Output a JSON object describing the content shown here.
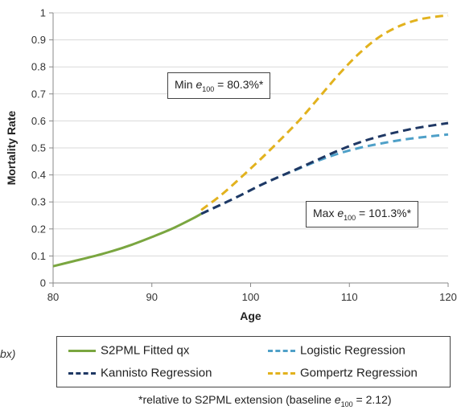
{
  "chart_data": {
    "type": "line",
    "xlabel": "Age",
    "ylabel": "Mortality Rate",
    "xlim": [
      80,
      120
    ],
    "ylim": [
      0,
      1
    ],
    "x_ticks": [
      "80",
      "90",
      "100",
      "110",
      "120"
    ],
    "y_ticks": [
      "0",
      "0.1",
      "0.2",
      "0.3",
      "0.4",
      "0.5",
      "0.6",
      "0.7",
      "0.8",
      "0.9",
      "1"
    ],
    "grid": "horizontal",
    "series": [
      {
        "name": "S2PML Fitted qx",
        "color": "#7aa640",
        "dashed": false,
        "x": [
          80,
          82,
          84,
          86,
          88,
          90,
          92,
          94,
          95
        ],
        "y": [
          0.062,
          0.08,
          0.098,
          0.118,
          0.142,
          0.17,
          0.2,
          0.236,
          0.256
        ]
      },
      {
        "name": "Logistic Regression",
        "color": "#4fa0c8",
        "dashed": true,
        "x": [
          95,
          97,
          99,
          101,
          103,
          105,
          107,
          109,
          111,
          113,
          115,
          117,
          120
        ],
        "y": [
          0.256,
          0.29,
          0.325,
          0.362,
          0.395,
          0.425,
          0.455,
          0.48,
          0.5,
          0.515,
          0.528,
          0.538,
          0.55
        ]
      },
      {
        "name": "Kannisto Regression",
        "color": "#1f3864",
        "dashed": true,
        "x": [
          95,
          97,
          99,
          101,
          103,
          105,
          107,
          109,
          111,
          113,
          115,
          117,
          120
        ],
        "y": [
          0.256,
          0.29,
          0.325,
          0.362,
          0.395,
          0.427,
          0.46,
          0.492,
          0.52,
          0.542,
          0.56,
          0.575,
          0.592
        ]
      },
      {
        "name": "Gompertz Regression",
        "color": "#e2b21e",
        "dashed": true,
        "x": [
          95,
          97,
          99,
          101,
          103,
          105,
          107,
          109,
          111,
          113,
          115,
          117,
          119,
          120
        ],
        "y": [
          0.27,
          0.325,
          0.39,
          0.458,
          0.53,
          0.605,
          0.69,
          0.775,
          0.85,
          0.91,
          0.95,
          0.975,
          0.987,
          0.99
        ]
      }
    ]
  },
  "annotations": {
    "min_box": {
      "prefix": "Min ",
      "var": "e",
      "sub": "100",
      "suffix": " = 80.3%*"
    },
    "max_box": {
      "prefix": "Max ",
      "var": "e",
      "sub": "100",
      "suffix": " = 101.3%*"
    }
  },
  "legend": {
    "items": [
      {
        "label": "S2PML Fitted qx",
        "color": "#7aa640",
        "dashed": false
      },
      {
        "label": "Logistic Regression",
        "color": "#4fa0c8",
        "dashed": true
      },
      {
        "label": "Kannisto Regression",
        "color": "#1f3864",
        "dashed": true
      },
      {
        "label": "Gompertz Regression",
        "color": "#e2b21e",
        "dashed": true
      }
    ]
  },
  "footnote": {
    "prefix": "*relative to S2PML extension (baseline ",
    "var": "e",
    "sub": "100",
    "suffix": " = 2.12)"
  },
  "cut_text": "bx)"
}
